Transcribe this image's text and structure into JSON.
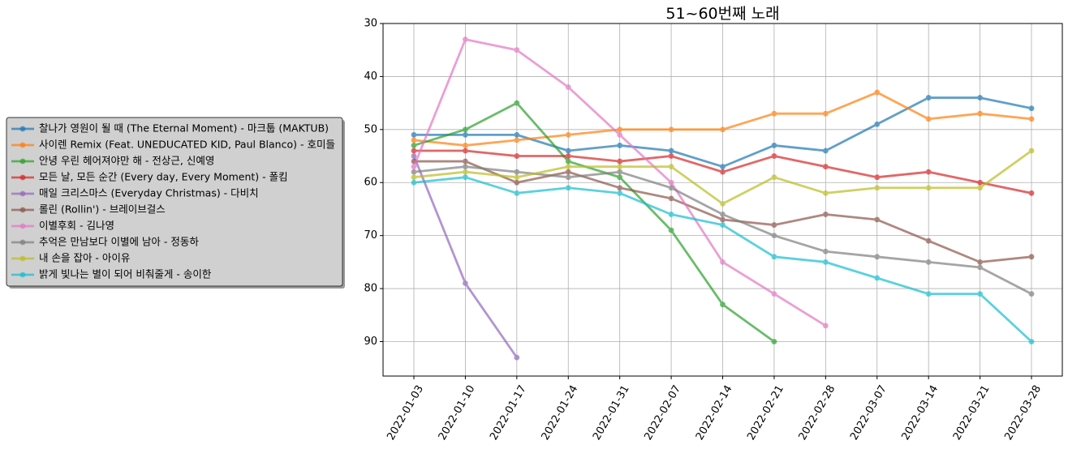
{
  "chart_data": {
    "type": "line",
    "title": "51~60번째 노래",
    "xlabel": "",
    "ylabel": "",
    "x": [
      "2022-01-03",
      "2022-01-10",
      "2022-01-17",
      "2022-01-24",
      "2022-01-31",
      "2022-02-07",
      "2022-02-14",
      "2022-02-21",
      "2022-02-28",
      "2022-03-07",
      "2022-03-14",
      "2022-03-21",
      "2022-03-28"
    ],
    "y_ticks": [
      30,
      40,
      50,
      60,
      70,
      80,
      90
    ],
    "ylim": [
      30,
      96.5
    ],
    "y_inverted": true,
    "grid": true,
    "legend_position": "left",
    "series": [
      {
        "name": "찰나가 영원이 될 때 (The Eternal Moment) - 마크툽 (MAKTUB)",
        "color": "#1f77b4",
        "values": [
          51,
          51,
          51,
          54,
          53,
          54,
          57,
          53,
          54,
          49,
          44,
          44,
          46
        ]
      },
      {
        "name": "사이렌 Remix (Feat. UNEDUCATED KID, Paul Blanco) - 호미들",
        "color": "#ff7f0e",
        "values": [
          52,
          53,
          52,
          51,
          50,
          50,
          50,
          47,
          47,
          43,
          48,
          47,
          48
        ]
      },
      {
        "name": "안녕 우린 헤어져야만 해 - 전상근, 신예영",
        "color": "#2ca02c",
        "values": [
          53,
          50,
          45,
          56,
          59,
          69,
          83,
          90,
          null,
          null,
          null,
          null,
          null
        ]
      },
      {
        "name": "모든 날, 모든 순간 (Every day, Every Moment) - 폴킴",
        "color": "#d62728",
        "values": [
          54,
          54,
          55,
          55,
          56,
          55,
          58,
          55,
          57,
          59,
          58,
          60,
          62
        ]
      },
      {
        "name": "매일 크리스마스 (Everyday Christmas) - 다비치",
        "color": "#9467bd",
        "values": [
          55,
          79,
          93,
          null,
          null,
          null,
          null,
          null,
          null,
          null,
          null,
          null,
          null
        ]
      },
      {
        "name": "롤린 (Rollin') - 브레이브걸스",
        "color": "#8c564b",
        "values": [
          56,
          56,
          60,
          58,
          61,
          63,
          67,
          68,
          66,
          67,
          71,
          75,
          74
        ]
      },
      {
        "name": "이별후회 - 김나영",
        "color": "#e377c2",
        "values": [
          57,
          33,
          35,
          42,
          51,
          60,
          75,
          81,
          87,
          null,
          null,
          null,
          null
        ]
      },
      {
        "name": "추억은 만남보다 이별에 남아 - 정동하",
        "color": "#7f7f7f",
        "values": [
          58,
          57,
          58,
          59,
          58,
          61,
          66,
          70,
          73,
          74,
          75,
          76,
          81
        ]
      },
      {
        "name": "내 손을 잡아 - 아이유",
        "color": "#bcbd22",
        "values": [
          59,
          58,
          59,
          57,
          57,
          57,
          64,
          59,
          62,
          61,
          61,
          61,
          54
        ]
      },
      {
        "name": "밝게 빛나는 별이 되어 비춰줄게 - 송이한",
        "color": "#17becf",
        "values": [
          60,
          59,
          62,
          61,
          62,
          66,
          68,
          74,
          75,
          78,
          81,
          81,
          90
        ]
      }
    ]
  }
}
